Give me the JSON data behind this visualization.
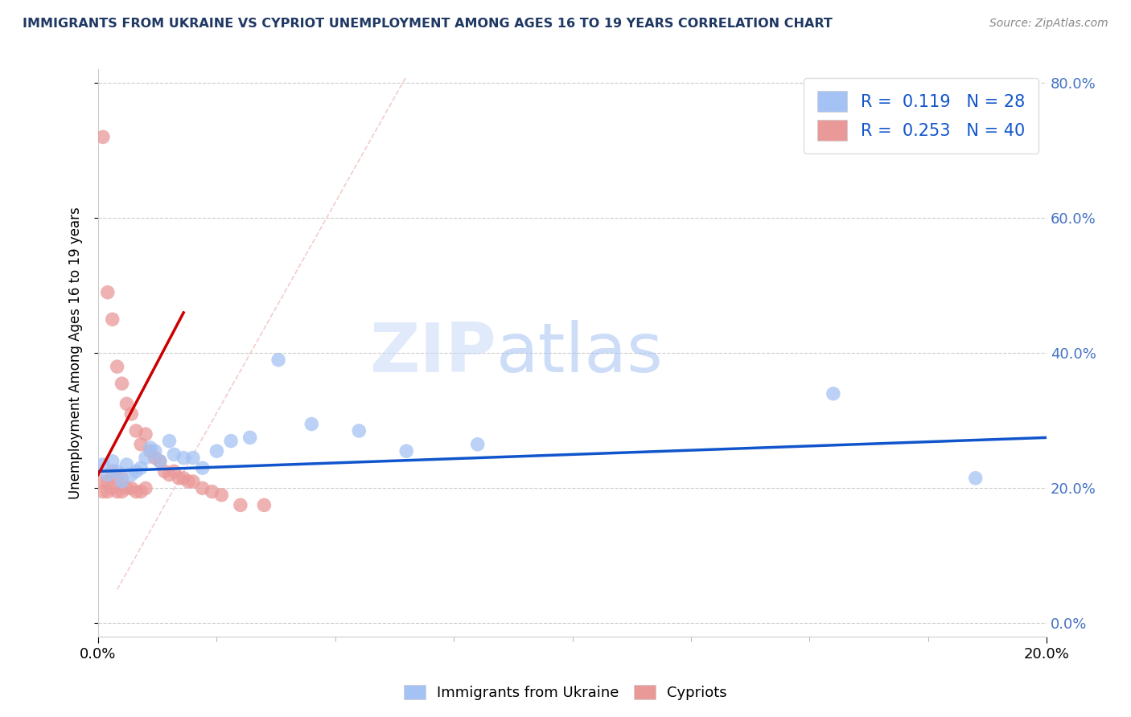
{
  "title": "IMMIGRANTS FROM UKRAINE VS CYPRIOT UNEMPLOYMENT AMONG AGES 16 TO 19 YEARS CORRELATION CHART",
  "source": "Source: ZipAtlas.com",
  "xlabel_blue": "Immigrants from Ukraine",
  "xlabel_pink": "Cypriots",
  "ylabel": "Unemployment Among Ages 16 to 19 years",
  "watermark_zip": "ZIP",
  "watermark_atlas": "atlas",
  "legend_blue_R": "0.119",
  "legend_blue_N": "28",
  "legend_pink_R": "0.253",
  "legend_pink_N": "40",
  "xlim": [
    0.0,
    0.2
  ],
  "ylim": [
    -0.02,
    0.82
  ],
  "blue_color": "#a4c2f4",
  "pink_color": "#ea9999",
  "trend_blue_color": "#1155cc",
  "trend_pink_color": "#cc0000",
  "dashed_line_color": "#f4cccc",
  "blue_scatter_x": [
    0.001,
    0.002,
    0.003,
    0.004,
    0.005,
    0.006,
    0.007,
    0.008,
    0.009,
    0.01,
    0.011,
    0.012,
    0.013,
    0.015,
    0.016,
    0.018,
    0.02,
    0.022,
    0.025,
    0.028,
    0.032,
    0.038,
    0.045,
    0.055,
    0.065,
    0.08,
    0.155,
    0.185
  ],
  "blue_scatter_y": [
    0.235,
    0.22,
    0.24,
    0.225,
    0.21,
    0.235,
    0.22,
    0.225,
    0.23,
    0.245,
    0.26,
    0.255,
    0.24,
    0.27,
    0.25,
    0.245,
    0.245,
    0.23,
    0.255,
    0.27,
    0.275,
    0.39,
    0.295,
    0.285,
    0.255,
    0.265,
    0.34,
    0.215
  ],
  "pink_scatter_x": [
    0.001,
    0.001,
    0.001,
    0.002,
    0.002,
    0.002,
    0.003,
    0.003,
    0.003,
    0.004,
    0.004,
    0.004,
    0.005,
    0.005,
    0.005,
    0.006,
    0.006,
    0.007,
    0.007,
    0.008,
    0.008,
    0.009,
    0.009,
    0.01,
    0.01,
    0.011,
    0.012,
    0.013,
    0.014,
    0.015,
    0.016,
    0.017,
    0.018,
    0.019,
    0.02,
    0.022,
    0.024,
    0.026,
    0.03,
    0.035
  ],
  "pink_scatter_y": [
    0.72,
    0.21,
    0.195,
    0.49,
    0.21,
    0.195,
    0.45,
    0.225,
    0.2,
    0.38,
    0.215,
    0.195,
    0.355,
    0.215,
    0.195,
    0.325,
    0.2,
    0.31,
    0.2,
    0.285,
    0.195,
    0.265,
    0.195,
    0.28,
    0.2,
    0.255,
    0.245,
    0.24,
    0.225,
    0.22,
    0.225,
    0.215,
    0.215,
    0.21,
    0.21,
    0.2,
    0.195,
    0.19,
    0.175,
    0.175
  ],
  "grid_color": "#cccccc",
  "background_color": "#ffffff",
  "title_color": "#1f3864",
  "source_color": "#888888",
  "right_tick_color": "#4472c4"
}
